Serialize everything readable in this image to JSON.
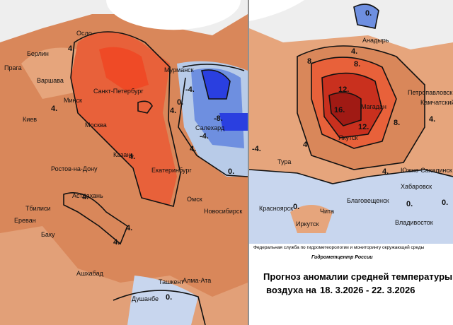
{
  "left_map": {
    "cities": [
      "Осло",
      "Берлин",
      "Прага",
      "Варшава",
      "Минск",
      "Санкт-Петербург",
      "Мурманск",
      "Киев",
      "Москва",
      "Ростов-на-Дону",
      "Казань",
      "Екатеринбург",
      "Астрахань",
      "Тбилиси",
      "Ереван",
      "Баку",
      "Ашхабад",
      "Ташкент",
      "Алма-Ата",
      "Душанбе",
      "Омск",
      "Новосибирск",
      "Салехард"
    ],
    "contour_labels": [
      "4.",
      "4.",
      "4.",
      "-4.",
      "0.",
      "-8.",
      "-4.",
      "4.",
      "4.",
      "4.",
      "4.",
      "4.",
      "0.",
      "0.",
      "-4."
    ]
  },
  "right_map": {
    "cities": [
      "Анадырь",
      "Петропавловск",
      "Камчатский",
      "Магадан",
      "Якутск",
      "Южно-Сахалинск",
      "Хабаровск",
      "Благовещенск",
      "Чита",
      "Иркутск",
      "Красноярск",
      "Владивосток",
      "Тура"
    ],
    "contour_labels": [
      "4.",
      "8.",
      "8.",
      "12.",
      "16.",
      "12.",
      "8.",
      "4.",
      "4.",
      "4.",
      "0.",
      "0.",
      "0.",
      "0."
    ]
  },
  "footer": {
    "agency": "Федеральная служба по гидрометеорологии и мониторингу окружающей среды",
    "center": "Гидрометцентр России",
    "title_line1": "Прогноз аномалии средней температуры",
    "title_line2": "воздуха на",
    "period": "18. 3.2026 - 22. 3.2026"
  }
}
